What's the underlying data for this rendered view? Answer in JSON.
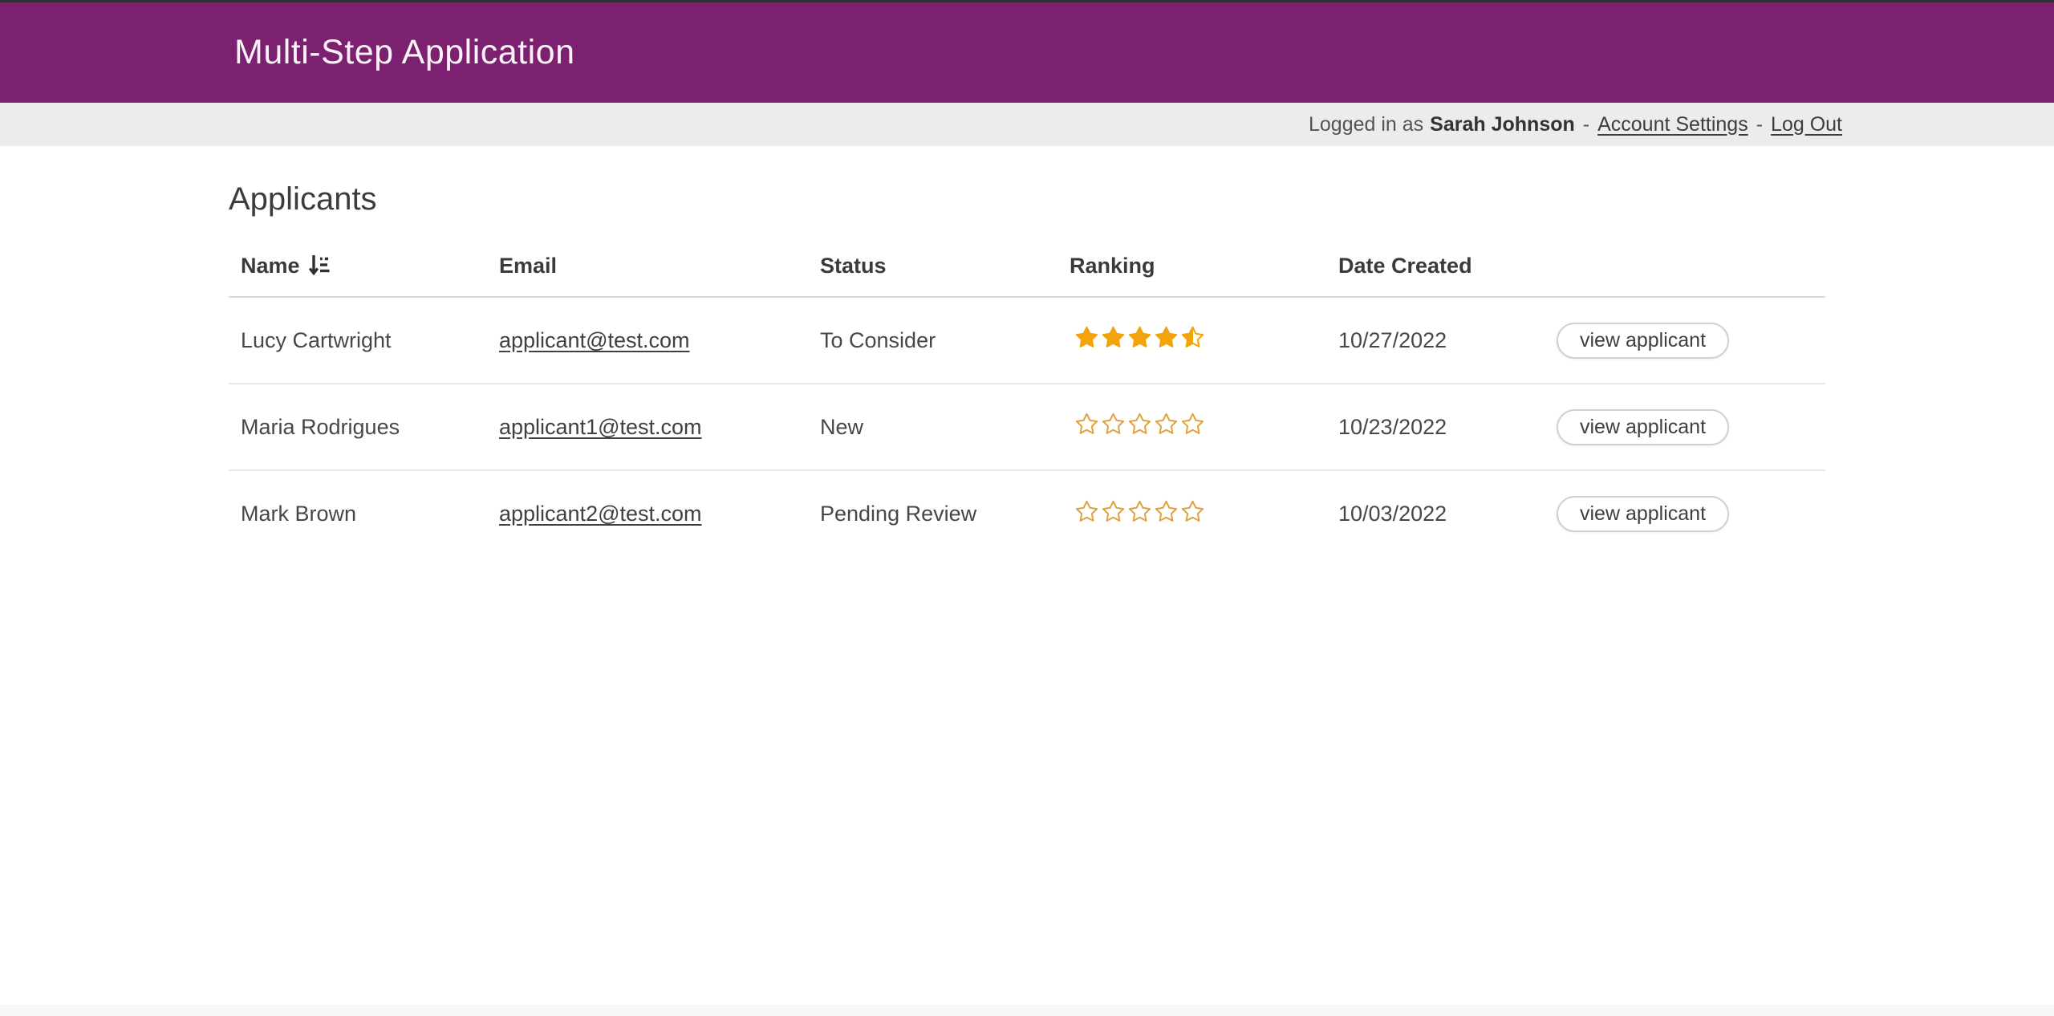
{
  "header": {
    "title": "Multi-Step Application"
  },
  "userbar": {
    "logged_in_prefix": "Logged in as",
    "user_name": "Sarah Johnson",
    "separator": "-",
    "account_settings_label": "Account Settings",
    "logout_label": "Log Out"
  },
  "page": {
    "heading": "Applicants"
  },
  "table": {
    "columns": {
      "name": "Name",
      "email": "Email",
      "status": "Status",
      "ranking": "Ranking",
      "date_created": "Date Created"
    },
    "sort": {
      "column": "Name",
      "direction": "ascending",
      "icon": "sort-ascending-icon"
    },
    "rows": [
      {
        "name": "Lucy Cartwright",
        "email": "applicant@test.com",
        "status": "To Consider",
        "rating": 4.5,
        "rating_max": 5,
        "date_created": "10/27/2022",
        "action_label": "view applicant"
      },
      {
        "name": "Maria Rodrigues",
        "email": "applicant1@test.com",
        "status": "New",
        "rating": 0,
        "rating_max": 5,
        "date_created": "10/23/2022",
        "action_label": "view applicant"
      },
      {
        "name": "Mark Brown",
        "email": "applicant2@test.com",
        "status": "Pending Review",
        "rating": 0,
        "rating_max": 5,
        "date_created": "10/03/2022",
        "action_label": "view applicant"
      }
    ]
  },
  "colors": {
    "header_bg": "#7c2170",
    "top_strip": "#332e36",
    "userbar_bg": "#ececec",
    "star_filled": "#f3a30b",
    "star_empty_outline": "#e0a23e",
    "divider": "#e7e7e7"
  }
}
